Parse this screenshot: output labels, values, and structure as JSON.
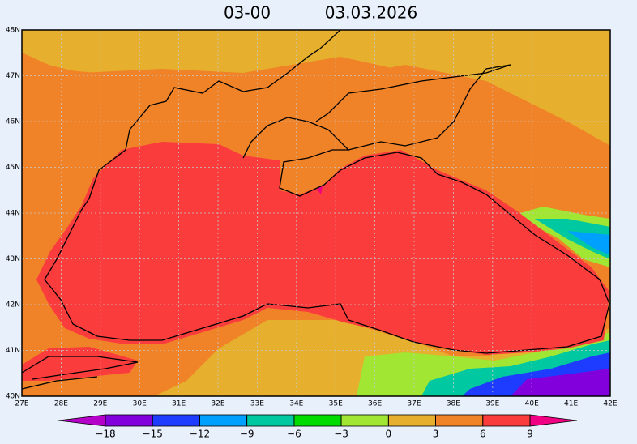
{
  "title": {
    "time": "03-00",
    "date": "03.03.2026"
  },
  "map": {
    "lon_ticks": [
      {
        "value": 27,
        "label": "27E"
      },
      {
        "value": 28,
        "label": "28E"
      },
      {
        "value": 29,
        "label": "29E"
      },
      {
        "value": 30,
        "label": "30E"
      },
      {
        "value": 31,
        "label": "31E"
      },
      {
        "value": 32,
        "label": "32E"
      },
      {
        "value": 33,
        "label": "33E"
      },
      {
        "value": 34,
        "label": "34E"
      },
      {
        "value": 35,
        "label": "35E"
      },
      {
        "value": 36,
        "label": "36E"
      },
      {
        "value": 37,
        "label": "37E"
      },
      {
        "value": 38,
        "label": "38E"
      },
      {
        "value": 39,
        "label": "39E"
      },
      {
        "value": 40,
        "label": "40E"
      },
      {
        "value": 41,
        "label": "41E"
      },
      {
        "value": 42,
        "label": "42E"
      }
    ],
    "lat_ticks": [
      {
        "value": 40,
        "label": "40N"
      },
      {
        "value": 41,
        "label": "41N"
      },
      {
        "value": 42,
        "label": "42N"
      },
      {
        "value": 43,
        "label": "43N"
      },
      {
        "value": 44,
        "label": "44N"
      },
      {
        "value": 45,
        "label": "45N"
      },
      {
        "value": 46,
        "label": "46N"
      },
      {
        "value": 47,
        "label": "47N"
      },
      {
        "value": 48,
        "label": "48N"
      }
    ]
  },
  "colorbar": {
    "ticks": [
      {
        "value": -18,
        "label": "−18"
      },
      {
        "value": -15,
        "label": "−15"
      },
      {
        "value": -12,
        "label": "−12"
      },
      {
        "value": -9,
        "label": "−9"
      },
      {
        "value": -6,
        "label": "−6"
      },
      {
        "value": -3,
        "label": "−3"
      },
      0,
      3,
      6,
      9
    ],
    "colors": [
      "#b400c8",
      "#8200dc",
      "#1e3cff",
      "#00a0ff",
      "#00c8a0",
      "#00dc00",
      "#a0e632",
      "#e6af2d",
      "#f08228",
      "#fa3c3c",
      "#f00082"
    ]
  }
}
